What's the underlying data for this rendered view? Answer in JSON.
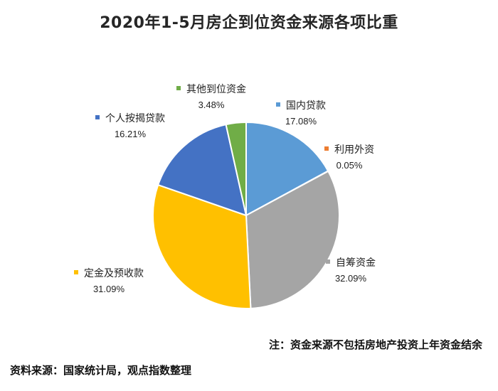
{
  "chart_data": {
    "type": "pie",
    "title": "2020年1-5月房企到位资金来源各项比重",
    "slices": [
      {
        "name": "国内贷款",
        "value": 17.08,
        "label": "17.08%",
        "color": "#5b9bd5"
      },
      {
        "name": "利用外资",
        "value": 0.05,
        "label": "0.05%",
        "color": "#ed7d31"
      },
      {
        "name": "自筹资金",
        "value": 32.09,
        "label": "32.09%",
        "color": "#a5a5a5"
      },
      {
        "name": "定金及预收款",
        "value": 31.09,
        "label": "31.09%",
        "color": "#ffc000"
      },
      {
        "name": "个人按揭贷款",
        "value": 16.21,
        "label": "16.21%",
        "color": "#4472c4"
      },
      {
        "name": "其他到位资金",
        "value": 3.48,
        "label": "3.48%",
        "color": "#70ad47"
      }
    ],
    "legend": "data labels beside slices",
    "start_angle": "12 o'clock, clockwise"
  },
  "note": "注：资金来源不包括房地产投资上年资金结余",
  "source": "资料来源：国家统计局，观点指数整理"
}
